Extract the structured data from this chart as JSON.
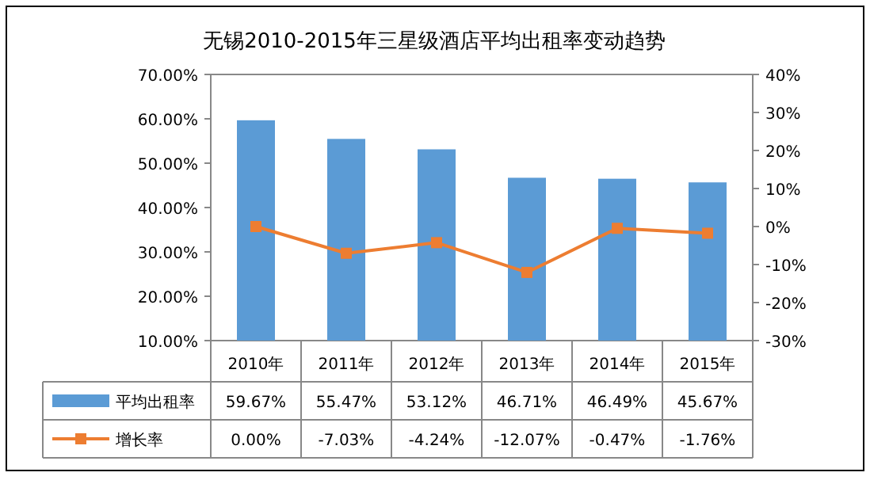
{
  "chart_data": {
    "type": "bar",
    "title": "无锡2010-2015年三星级酒店平均出租率变动趋势",
    "categories": [
      "2010年",
      "2011年",
      "2012年",
      "2013年",
      "2014年",
      "2015年"
    ],
    "series": [
      {
        "name": "平均出租率",
        "color": "#5b9bd5",
        "values": [
          59.67,
          55.47,
          53.12,
          46.71,
          46.49,
          45.67
        ],
        "value_labels": [
          "59.67%",
          "55.47%",
          "53.12%",
          "46.71%",
          "46.49%",
          "45.67%"
        ]
      },
      {
        "name": "增长率",
        "type": "line",
        "axis": "y2",
        "color": "#ed7d31",
        "marker": "square",
        "values": [
          0.0,
          -7.03,
          -4.24,
          -12.07,
          -0.47,
          -1.76
        ],
        "value_labels": [
          "0.00%",
          "-7.03%",
          "-4.24%",
          "-12.07%",
          "-0.47%",
          "-1.76%"
        ]
      }
    ],
    "ylim": [
      10,
      70
    ],
    "yticks": [
      {
        "value": 10,
        "label": "10.00%"
      },
      {
        "value": 20,
        "label": "20.00%"
      },
      {
        "value": 30,
        "label": "30.00%"
      },
      {
        "value": 40,
        "label": "40.00%"
      },
      {
        "value": 50,
        "label": "50.00%"
      },
      {
        "value": 60,
        "label": "60.00%"
      },
      {
        "value": 70,
        "label": "70.00%"
      }
    ],
    "y2lim": [
      -30,
      40
    ],
    "y2ticks": [
      {
        "value": -30,
        "label": "-30%"
      },
      {
        "value": -20,
        "label": "-20%"
      },
      {
        "value": -10,
        "label": "-10%"
      },
      {
        "value": 0,
        "label": "0%"
      },
      {
        "value": 10,
        "label": "10%"
      },
      {
        "value": 20,
        "label": "20%"
      },
      {
        "value": 30,
        "label": "30%"
      },
      {
        "value": 40,
        "label": "40%"
      }
    ],
    "legend": "bottom left"
  }
}
